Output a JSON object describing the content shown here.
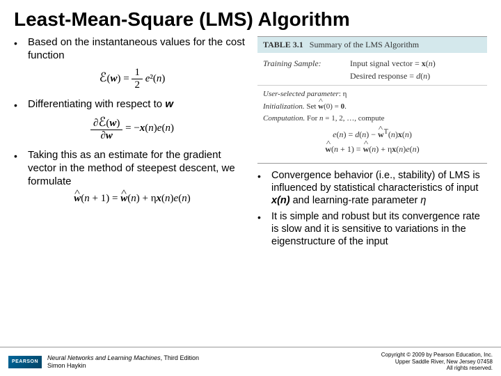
{
  "title": "Least-Mean-Square (LMS) Algorithm",
  "left": {
    "b1": "Based on the instantaneous values for the cost function",
    "f1_lhs": "ℰ(w)",
    "f1_rhs_num": "1",
    "f1_rhs_den": "2",
    "f1_rhs_tail": "e²(n)",
    "b2_pre": "Differentiating with respect to ",
    "b2_var": "w",
    "f2_num": "∂ℰ(w)",
    "f2_den": "∂w",
    "f2_rhs": " = −x(n)e(n)",
    "b3": "Taking this as an estimate for the gradient vector in the method of steepest descent, we formulate",
    "f3": "ŵ(n + 1) = ŵ(n) + ηx(n)e(n)"
  },
  "table": {
    "caption": "TABLE 3.1   Summary of the LMS Algorithm",
    "row1_label": "Training Sample:",
    "row1_v1": "Input signal vector = x(n)",
    "row1_v2": "Desired response = d(n)",
    "sec2_l1": "User-selected parameter: η",
    "sec2_l2": "Initialization. Set ŵ(0) = 0.",
    "sec2_l3": "Computation. For n = 1, 2, …, compute",
    "sec2_f1": "e(n) = d(n) − ŵᵀ(n)x(n)",
    "sec2_f2": "ŵ(n + 1) = ŵ(n) + ηx(n)e(n)"
  },
  "right": {
    "b1_pre": "Convergence behavior (i.e., stability) of LMS is influenced by statistical characteristics of input ",
    "b1_var1": "x(n)",
    "b1_mid": " and learning-rate parameter ",
    "b1_var2": "η",
    "b2": "It is simple and robust but its convergence rate is slow and it is sensitive to variations in the eigenstructure of the input"
  },
  "footer": {
    "logo": "PEARSON",
    "book_title": "Neural Networks and Learning Machines",
    "book_edition": ", Third Edition",
    "author": "Simon Haykin",
    "copy_l1": "Copyright © 2009 by Pearson Education, Inc.",
    "copy_l2": "Upper Saddle River, New Jersey 07458",
    "copy_l3": "All rights reserved."
  }
}
